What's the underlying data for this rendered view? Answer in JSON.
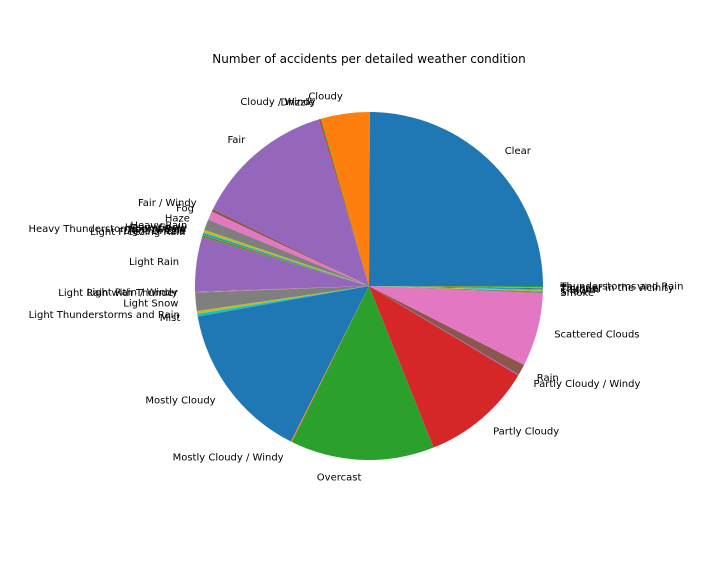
{
  "chart_data": {
    "type": "pie",
    "title": "Number of accidents per detailed weather condition",
    "palette": [
      "#1f77b4",
      "#ff7f0e",
      "#2ca02c",
      "#d62728",
      "#9467bd",
      "#8c564b",
      "#e377c2",
      "#7f7f7f",
      "#bcbd22",
      "#17becf"
    ],
    "slices": [
      {
        "label": "Clear",
        "value": 24.8
      },
      {
        "label": "Cloudy",
        "value": 4.5
      },
      {
        "label": "Cloudy / Windy",
        "value": 0.1
      },
      {
        "label": "Drizzle",
        "value": 0.1
      },
      {
        "label": "Fair",
        "value": 13.0
      },
      {
        "label": "Fair / Windy",
        "value": 0.25
      },
      {
        "label": "Fog",
        "value": 0.8
      },
      {
        "label": "Haze",
        "value": 1.0
      },
      {
        "label": "Heavy Rain",
        "value": 0.25
      },
      {
        "label": "Heavy Snow",
        "value": 0.1
      },
      {
        "label": "Heavy Thunderstorms and Rain",
        "value": 0.1
      },
      {
        "label": "Hot / Windy",
        "value": 0.05
      },
      {
        "label": "Light Drizzle",
        "value": 0.15
      },
      {
        "label": "Light Freezing Rain",
        "value": 0.05
      },
      {
        "label": "Light Rain",
        "value": 5.0
      },
      {
        "label": "Light Rain / Windy",
        "value": 0.05
      },
      {
        "label": "Light Rain with Thunder",
        "value": 0.05
      },
      {
        "label": "Light Snow",
        "value": 1.7
      },
      {
        "label": "Light Thunderstorms and Rain",
        "value": 0.25
      },
      {
        "label": "Mist",
        "value": 0.25
      },
      {
        "label": "Mostly Cloudy",
        "value": 14.7
      },
      {
        "label": "Mostly Cloudy / Windy",
        "value": 0.1
      },
      {
        "label": "Overcast",
        "value": 13.3
      },
      {
        "label": "Partly Cloudy",
        "value": 10.3
      },
      {
        "label": "Partly Cloudy / Windy",
        "value": 0.1
      },
      {
        "label": "Rain",
        "value": 1.0
      },
      {
        "label": "Scattered Clouds",
        "value": 6.8
      },
      {
        "label": "Smoke",
        "value": 0.15
      },
      {
        "label": "Snow",
        "value": 0.1
      },
      {
        "label": "T-Storm",
        "value": 0.1
      },
      {
        "label": "Thunder",
        "value": 0.1
      },
      {
        "label": "Thunder in the Vicinity",
        "value": 0.1
      },
      {
        "label": "Thunderstorms and Rain",
        "value": 0.1
      }
    ]
  }
}
